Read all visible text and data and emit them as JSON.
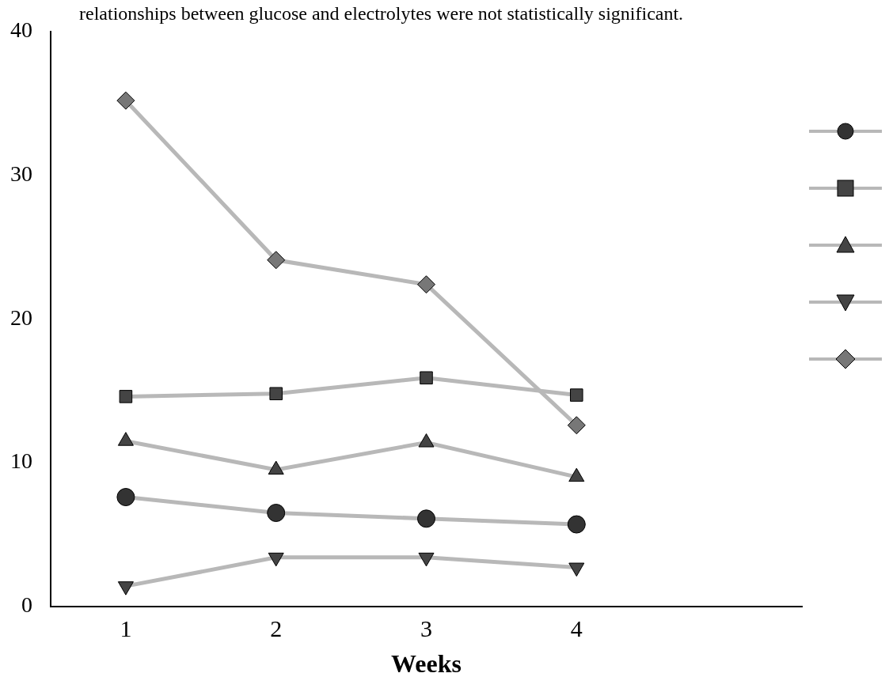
{
  "chart_data": {
    "type": "line",
    "xlabel": "Weeks",
    "categories": [
      "1",
      "2",
      "3",
      "4",
      null
    ],
    "annotations": [
      "relationships between glucose and electrolytes were not statistically significant."
    ],
    "ylim": [
      0,
      40
    ],
    "yticks": [
      0,
      10,
      20,
      30,
      40
    ],
    "grid": false,
    "series": [
      {
        "color": "#333333",
        "marker": "circle",
        "values": [
          7.6,
          6.5,
          6.1,
          5.7,
          null
        ]
      },
      {
        "color": "#444444",
        "marker": "square",
        "values": [
          14.6,
          14.8,
          15.9,
          14.7,
          null
        ]
      },
      {
        "color": "#444444",
        "marker": "triangle",
        "values": [
          11.5,
          9.5,
          11.4,
          9.0,
          null
        ]
      },
      {
        "color": "#444444",
        "marker": "triangle-down",
        "values": [
          1.4,
          3.4,
          3.4,
          2.7,
          null
        ]
      },
      {
        "color": "#777777",
        "marker": "diamond",
        "values": [
          35.2,
          24.1,
          22.4,
          12.6,
          null
        ]
      }
    ]
  }
}
